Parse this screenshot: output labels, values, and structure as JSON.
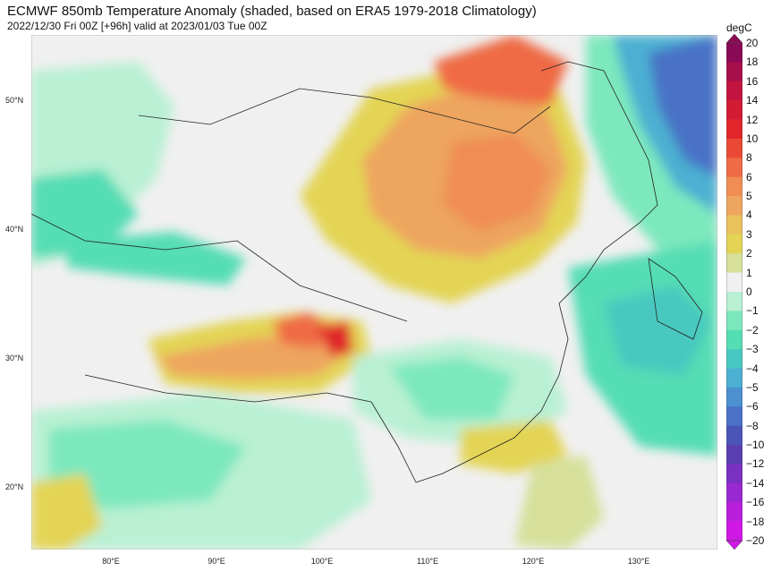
{
  "header": {
    "title": "ECMWF 850mb Temperature Anomaly (shaded, based on ERA5 1979-2018 Climatology)",
    "subtitle": "2022/12/30 Fri 00Z [+96h] valid at 2023/01/03 Tue 00Z"
  },
  "map": {
    "lat_labels": [
      "50°N",
      "40°N",
      "30°N",
      "20°N"
    ],
    "lon_labels": [
      "80°E",
      "90°E",
      "100°E",
      "110°E",
      "120°E",
      "130°E"
    ]
  },
  "colorbar": {
    "unit": "degC",
    "labels": [
      "20",
      "18",
      "16",
      "14",
      "12",
      "10",
      "8",
      "6",
      "5",
      "4",
      "3",
      "2",
      "1",
      "0",
      "−1",
      "−2",
      "−3",
      "−4",
      "−5",
      "−6",
      "−8",
      "−10",
      "−12",
      "−14",
      "−16",
      "−18",
      "−20"
    ],
    "colors": [
      "#8a0a55",
      "#a70f4a",
      "#c2143f",
      "#d31b34",
      "#e0262a",
      "#ea4a35",
      "#ef6a45",
      "#f08d55",
      "#eea55f",
      "#e9c25c",
      "#e3d455",
      "#d6e09a",
      "#f0f0f0",
      "#b9f0d4",
      "#7de8bd",
      "#55ddb4",
      "#48c8c0",
      "#4bb0d2",
      "#4c90d0",
      "#4a72c6",
      "#4b55b8",
      "#5a3fb0",
      "#7a30c0",
      "#9a28d0",
      "#b820dc",
      "#d018e6"
    ]
  }
}
